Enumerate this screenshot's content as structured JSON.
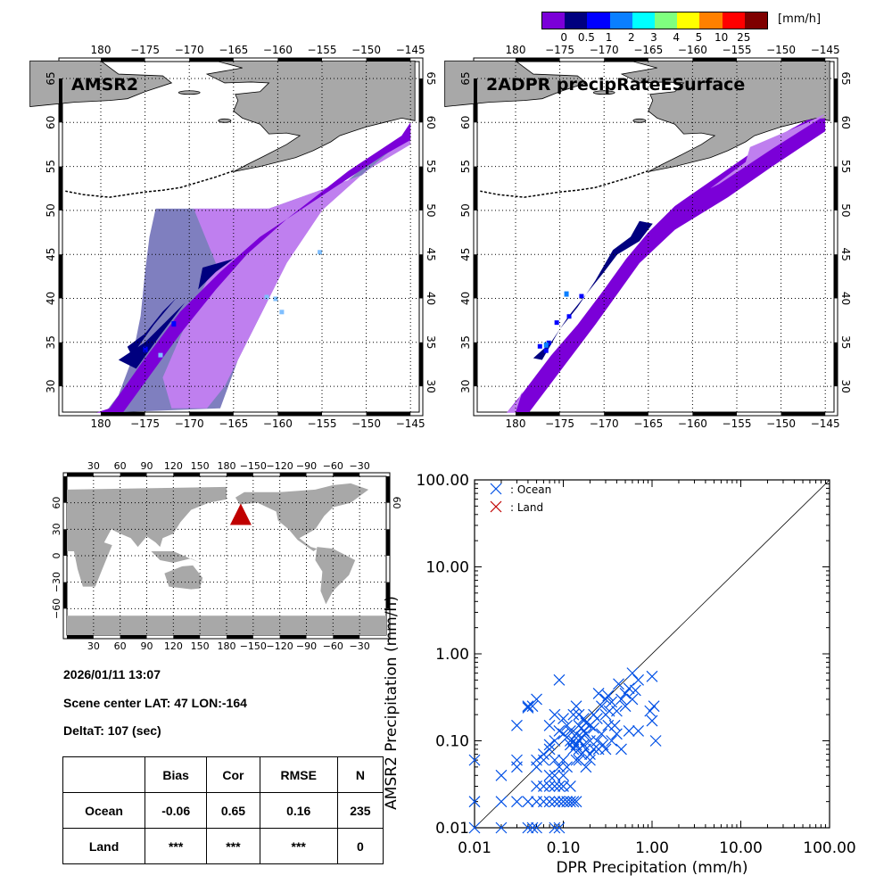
{
  "colorbar": {
    "unit": "[mm/h]",
    "colors": [
      "#7b00d8",
      "#00007f",
      "#0000ff",
      "#0a7fff",
      "#00ffff",
      "#7fff7f",
      "#ffff00",
      "#ff8000",
      "#ff0000",
      "#7f0000"
    ],
    "labels": [
      "0",
      "0.5",
      "1",
      "2",
      "3",
      "4",
      "5",
      "10",
      "25"
    ]
  },
  "maps": {
    "land_color": "#a8a8a8",
    "lon_ticks": [
      "180",
      "−175",
      "−170",
      "−165",
      "−160",
      "−155",
      "−150",
      "−145"
    ],
    "lat_ticks": [
      "65",
      "60",
      "55",
      "50",
      "45",
      "40",
      "35",
      "30"
    ],
    "amsr2": {
      "title": "AMSR2"
    },
    "dpr": {
      "title": "2ADPR precipRateESurface"
    },
    "precip_colors": {
      "light": "#bf7fef",
      "gray": "#7f7fbf",
      "purple": "#7b00d8",
      "navy": "#00007f",
      "blue": "#0000ff",
      "skyblue": "#0a7fff",
      "cyan": "#7fbfff"
    }
  },
  "world_map": {
    "lon_ticks": [
      "30",
      "60",
      "90",
      "120",
      "150",
      "180",
      "−150",
      "−120",
      "−90",
      "−60",
      "−30"
    ],
    "lat_ticks": [
      "60",
      "30",
      "0",
      "−30",
      "−60"
    ],
    "marker_color": "#c00000",
    "marker": "triangle"
  },
  "info": {
    "datetime": "2026/01/11 13:07",
    "scene_center": "Scene center LAT: 47   LON:-164",
    "deltat": "DeltaT:  107 (sec)"
  },
  "stats_table": {
    "headers": [
      "",
      "Bias",
      "Cor",
      "RMSE",
      "N"
    ],
    "rows": [
      [
        "Ocean",
        "-0.06",
        "0.65",
        "0.16",
        "235"
      ],
      [
        "Land",
        "***",
        "***",
        "***",
        "0"
      ]
    ]
  },
  "chart_data": {
    "type": "scatter",
    "title": "",
    "xlabel": "DPR Precipitation (mm/h)",
    "ylabel": "AMSR2 Precipitation (mm/h)",
    "xscale": "log",
    "yscale": "log",
    "xlim": [
      0.01,
      100
    ],
    "ylim": [
      0.01,
      100
    ],
    "xticks": [
      "0.01",
      "0.10",
      "1.00",
      "10.00",
      "100.00"
    ],
    "yticks": [
      "0.01",
      "0.10",
      "1.00",
      "10.00",
      "100.00"
    ],
    "reference_line": "1:1",
    "legend": {
      "placement": "top-left",
      "entries": [
        {
          "label": ": Ocean",
          "color": "#0050e6"
        },
        {
          "label": ": Land",
          "color": "#c00000"
        }
      ]
    },
    "series": [
      {
        "name": "Ocean",
        "color": "#0050e6",
        "points": [
          [
            0.01,
            0.06
          ],
          [
            0.01,
            0.02
          ],
          [
            0.01,
            0.01
          ],
          [
            0.02,
            0.04
          ],
          [
            0.02,
            0.02
          ],
          [
            0.02,
            0.01
          ],
          [
            0.03,
            0.15
          ],
          [
            0.03,
            0.06
          ],
          [
            0.03,
            0.05
          ],
          [
            0.03,
            0.02
          ],
          [
            0.04,
            0.25
          ],
          [
            0.04,
            0.24
          ],
          [
            0.045,
            0.25
          ],
          [
            0.04,
            0.02
          ],
          [
            0.04,
            0.01
          ],
          [
            0.045,
            0.01
          ],
          [
            0.05,
            0.3
          ],
          [
            0.05,
            0.05
          ],
          [
            0.05,
            0.06
          ],
          [
            0.05,
            0.03
          ],
          [
            0.05,
            0.02
          ],
          [
            0.05,
            0.01
          ],
          [
            0.06,
            0.06
          ],
          [
            0.06,
            0.07
          ],
          [
            0.06,
            0.03
          ],
          [
            0.06,
            0.02
          ],
          [
            0.07,
            0.15
          ],
          [
            0.07,
            0.08
          ],
          [
            0.07,
            0.09
          ],
          [
            0.07,
            0.03
          ],
          [
            0.07,
            0.02
          ],
          [
            0.07,
            0.04
          ],
          [
            0.08,
            0.2
          ],
          [
            0.08,
            0.1
          ],
          [
            0.08,
            0.06
          ],
          [
            0.08,
            0.04
          ],
          [
            0.08,
            0.03
          ],
          [
            0.08,
            0.02
          ],
          [
            0.08,
            0.01
          ],
          [
            0.09,
            0.5
          ],
          [
            0.09,
            0.13
          ],
          [
            0.09,
            0.05
          ],
          [
            0.09,
            0.03
          ],
          [
            0.09,
            0.02
          ],
          [
            0.09,
            0.01
          ],
          [
            0.1,
            0.18
          ],
          [
            0.1,
            0.12
          ],
          [
            0.1,
            0.06
          ],
          [
            0.1,
            0.04
          ],
          [
            0.1,
            0.03
          ],
          [
            0.1,
            0.02
          ],
          [
            0.11,
            0.15
          ],
          [
            0.11,
            0.11
          ],
          [
            0.11,
            0.05
          ],
          [
            0.11,
            0.02
          ],
          [
            0.12,
            0.13
          ],
          [
            0.12,
            0.1
          ],
          [
            0.12,
            0.09
          ],
          [
            0.12,
            0.03
          ],
          [
            0.12,
            0.02
          ],
          [
            0.13,
            0.2
          ],
          [
            0.13,
            0.1
          ],
          [
            0.13,
            0.08
          ],
          [
            0.13,
            0.02
          ],
          [
            0.14,
            0.25
          ],
          [
            0.14,
            0.12
          ],
          [
            0.14,
            0.09
          ],
          [
            0.14,
            0.06
          ],
          [
            0.14,
            0.02
          ],
          [
            0.15,
            0.2
          ],
          [
            0.15,
            0.15
          ],
          [
            0.15,
            0.1
          ],
          [
            0.15,
            0.08
          ],
          [
            0.15,
            0.06
          ],
          [
            0.16,
            0.14
          ],
          [
            0.16,
            0.11
          ],
          [
            0.16,
            0.07
          ],
          [
            0.17,
            0.18
          ],
          [
            0.17,
            0.13
          ],
          [
            0.17,
            0.09
          ],
          [
            0.18,
            0.16
          ],
          [
            0.18,
            0.12
          ],
          [
            0.18,
            0.08
          ],
          [
            0.18,
            0.05
          ],
          [
            0.2,
            0.15
          ],
          [
            0.2,
            0.1
          ],
          [
            0.2,
            0.07
          ],
          [
            0.2,
            0.06
          ],
          [
            0.22,
            0.2
          ],
          [
            0.22,
            0.14
          ],
          [
            0.22,
            0.08
          ],
          [
            0.24,
            0.18
          ],
          [
            0.24,
            0.1
          ],
          [
            0.25,
            0.35
          ],
          [
            0.25,
            0.08
          ],
          [
            0.27,
            0.25
          ],
          [
            0.27,
            0.12
          ],
          [
            0.28,
            0.09
          ],
          [
            0.3,
            0.3
          ],
          [
            0.3,
            0.2
          ],
          [
            0.3,
            0.08
          ],
          [
            0.32,
            0.33
          ],
          [
            0.32,
            0.15
          ],
          [
            0.33,
            0.22
          ],
          [
            0.35,
            0.28
          ],
          [
            0.35,
            0.1
          ],
          [
            0.38,
            0.15
          ],
          [
            0.4,
            0.22
          ],
          [
            0.4,
            0.12
          ],
          [
            0.42,
            0.45
          ],
          [
            0.45,
            0.3
          ],
          [
            0.45,
            0.08
          ],
          [
            0.5,
            0.25
          ],
          [
            0.5,
            0.35
          ],
          [
            0.55,
            0.4
          ],
          [
            0.55,
            0.13
          ],
          [
            0.6,
            0.6
          ],
          [
            0.6,
            0.3
          ],
          [
            0.65,
            0.38
          ],
          [
            0.7,
            0.5
          ],
          [
            0.7,
            0.13
          ],
          [
            1.0,
            0.55
          ],
          [
            1.0,
            0.17
          ],
          [
            1.05,
            0.25
          ],
          [
            1.1,
            0.1
          ],
          [
            0.95,
            0.22
          ]
        ]
      },
      {
        "name": "Land",
        "color": "#c00000",
        "points": []
      }
    ]
  }
}
